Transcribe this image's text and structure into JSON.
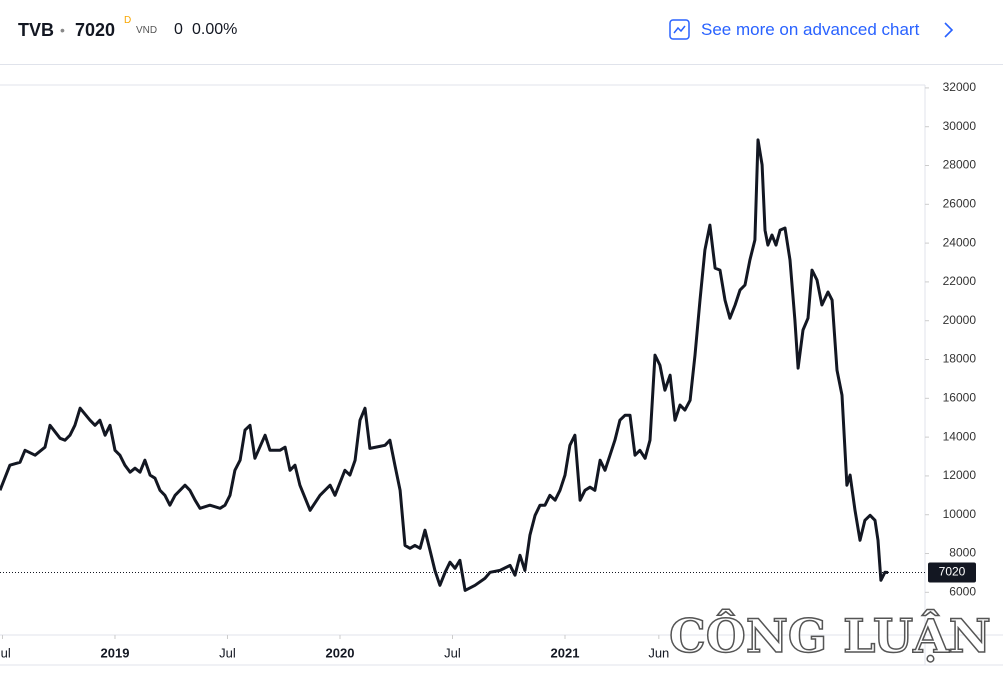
{
  "header": {
    "symbol": "TVB",
    "separator": "•",
    "price": "7020",
    "interval": "D",
    "currency": "VND",
    "change": "0",
    "change_percent": "0.00%",
    "link": "See more on advanced chart"
  },
  "watermark": "CÔNG LUẬN",
  "chart_data": {
    "type": "line",
    "color": "#131722",
    "last_price": 7020,
    "x": [
      2018.489,
      2018.533,
      2018.578,
      2018.6,
      2018.645,
      2018.689,
      2018.711,
      2018.756,
      2018.778,
      2018.8,
      2018.822,
      2018.845,
      2018.889,
      2018.911,
      2018.933,
      2018.956,
      2018.978,
      2019.0,
      2019.022,
      2019.044,
      2019.067,
      2019.089,
      2019.111,
      2019.133,
      2019.156,
      2019.178,
      2019.2,
      2019.222,
      2019.244,
      2019.267,
      2019.289,
      2019.311,
      2019.333,
      2019.356,
      2019.378,
      2019.422,
      2019.467,
      2019.489,
      2019.511,
      2019.533,
      2019.556,
      2019.578,
      2019.6,
      2019.622,
      2019.667,
      2019.689,
      2019.733,
      2019.756,
      2019.778,
      2019.8,
      2019.822,
      2019.867,
      2019.911,
      2019.956,
      2019.978,
      2020.022,
      2020.044,
      2020.067,
      2020.089,
      2020.111,
      2020.133,
      2020.2,
      2020.222,
      2020.244,
      2020.267,
      2020.289,
      2020.311,
      2020.333,
      2020.356,
      2020.378,
      2020.4,
      2020.422,
      2020.444,
      2020.467,
      2020.489,
      2020.511,
      2020.533,
      2020.556,
      2020.6,
      2020.644,
      2020.667,
      2020.711,
      2020.756,
      2020.778,
      2020.8,
      2020.822,
      2020.844,
      2020.867,
      2020.889,
      2020.911,
      2020.933,
      2020.956,
      2020.978,
      2021.0,
      2021.022,
      2021.044,
      2021.067,
      2021.089,
      2021.111,
      2021.133,
      2021.156,
      2021.178,
      2021.2,
      2021.222,
      2021.244,
      2021.267,
      2021.289,
      2021.311,
      2021.333,
      2021.356,
      2021.378,
      2021.4,
      2021.422,
      2021.444,
      2021.467,
      2021.489,
      2021.511,
      2021.533,
      2021.556,
      2021.578,
      2021.6,
      2021.622,
      2021.644,
      2021.667,
      2021.689,
      2021.711,
      2021.733,
      2021.756,
      2021.778,
      2021.8,
      2021.822,
      2021.844,
      2021.858,
      2021.876,
      2021.889,
      2021.902,
      2021.92,
      2021.938,
      2021.956,
      2021.978,
      2022.0,
      2022.022,
      2022.036,
      2022.058,
      2022.08,
      2022.098,
      2022.12,
      2022.142,
      2022.169,
      2022.187,
      2022.209,
      2022.231,
      2022.253,
      2022.267,
      2022.289,
      2022.311,
      2022.333,
      2022.356,
      2022.378,
      2022.391,
      2022.404,
      2022.422,
      2022.436
    ],
    "values": [
      11260,
      12550,
      12700,
      13320,
      13070,
      13480,
      14610,
      13940,
      13840,
      14100,
      14610,
      15490,
      14870,
      14610,
      14870,
      14100,
      14610,
      13320,
      13070,
      12550,
      12190,
      12400,
      12190,
      12810,
      12040,
      11880,
      11260,
      11000,
      10490,
      11000,
      11260,
      11520,
      11260,
      10750,
      10330,
      10490,
      10330,
      10490,
      11000,
      12290,
      12810,
      14360,
      14610,
      12910,
      14100,
      13320,
      13320,
      13480,
      12290,
      12550,
      11520,
      10230,
      11000,
      11520,
      11000,
      12290,
      12040,
      12810,
      14870,
      15490,
      13420,
      13580,
      13840,
      12550,
      11260,
      8420,
      8270,
      8420,
      8270,
      9200,
      8170,
      7130,
      6360,
      7030,
      7550,
      7240,
      7650,
      6100,
      6360,
      6720,
      7030,
      7130,
      7390,
      6880,
      7910,
      7130,
      8940,
      9970,
      10490,
      10490,
      11000,
      10750,
      11260,
      12040,
      13580,
      14100,
      10750,
      11260,
      11420,
      11260,
      12810,
      12290,
      13070,
      13840,
      14870,
      15130,
      15130,
      13070,
      13320,
      12910,
      13840,
      18230,
      17710,
      16420,
      17190,
      14870,
      15650,
      15390,
      15900,
      18230,
      21060,
      23640,
      24930,
      22710,
      22610,
      21060,
      20130,
      20810,
      21580,
      21840,
      23130,
      24160,
      29320,
      28030,
      24670,
      23900,
      24420,
      23900,
      24670,
      24780,
      23130,
      20030,
      17560,
      19520,
      20130,
      22610,
      22100,
      20810,
      21480,
      21060,
      17450,
      16160,
      11520,
      12040,
      10230,
      8680,
      9710,
      9970,
      9710,
      8680,
      6620,
      7030,
      7020
    ],
    "xlim": [
      2018.489,
      2022.6
    ],
    "ylim": [
      3800,
      32150
    ],
    "xticks": [
      {
        "value": 2018.5,
        "label": "Jul"
      },
      2019,
      {
        "value": 2019.5,
        "label": "Jul"
      },
      2020,
      {
        "value": 2020.5,
        "label": "Jul"
      },
      2021,
      {
        "value": 2021.417,
        "label": "Jun"
      }
    ],
    "yticks": [
      6000,
      8000,
      10000,
      12000,
      14000,
      16000,
      18000,
      20000,
      22000,
      24000,
      26000,
      28000,
      30000,
      32000
    ]
  }
}
